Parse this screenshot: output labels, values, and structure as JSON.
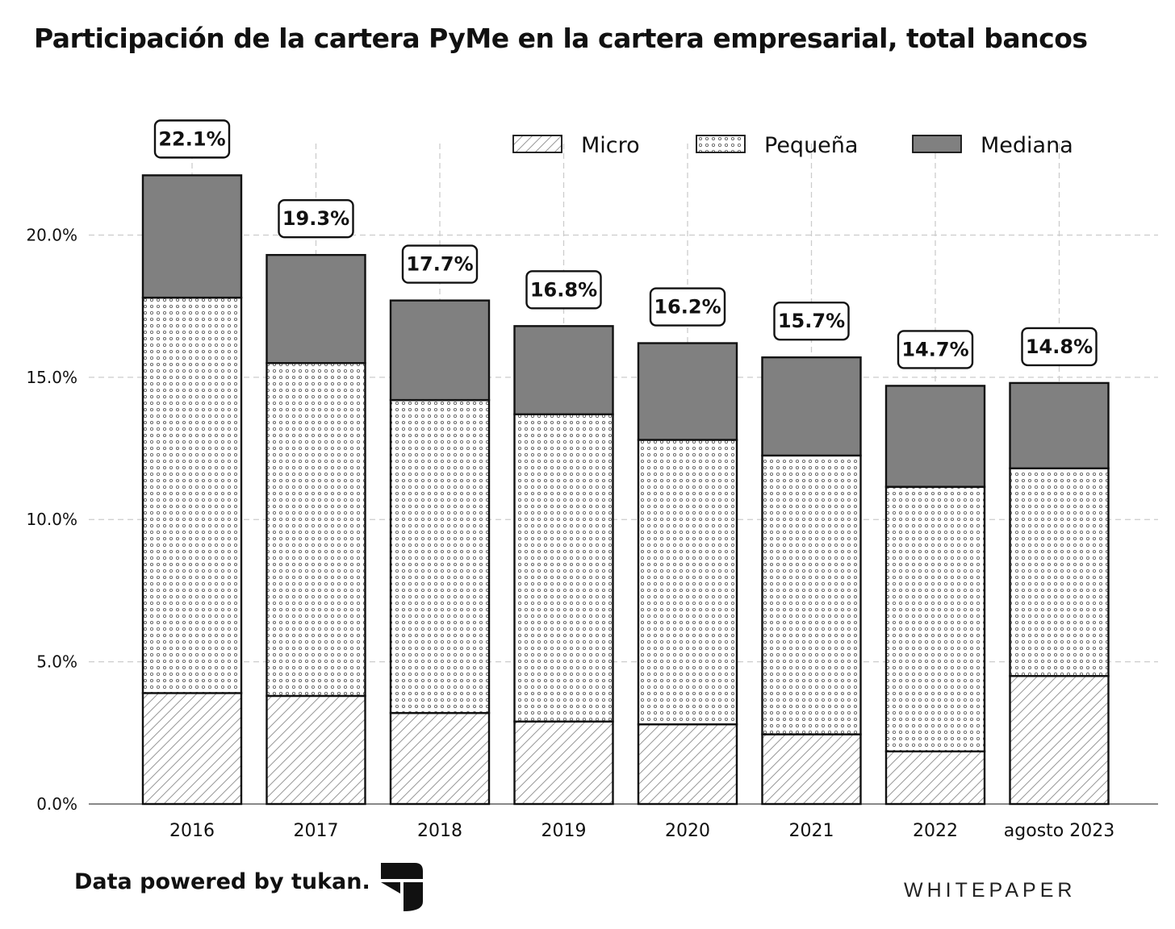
{
  "chart_data": {
    "type": "bar",
    "stacked": true,
    "title": "Participación de la cartera PyMe en la cartera empresarial, total bancos",
    "categories": [
      "2016",
      "2017",
      "2018",
      "2019",
      "2020",
      "2021",
      "2022",
      "agosto 2023"
    ],
    "series": [
      {
        "name": "Micro",
        "pattern": "diagonal-hatch",
        "values": [
          3.9,
          3.8,
          3.2,
          2.9,
          2.8,
          2.45,
          1.85,
          4.5
        ]
      },
      {
        "name": "Pequeña",
        "pattern": "dots",
        "values": [
          13.9,
          11.7,
          11.0,
          10.8,
          10.0,
          9.8,
          9.3,
          7.3
        ]
      },
      {
        "name": "Mediana",
        "pattern": "solid",
        "color": "#808080",
        "values": [
          4.3,
          3.8,
          3.5,
          3.1,
          3.4,
          3.45,
          3.55,
          3.0
        ]
      }
    ],
    "totals": [
      "22.1%",
      "19.3%",
      "17.7%",
      "16.8%",
      "16.2%",
      "15.7%",
      "14.7%",
      "14.8%"
    ],
    "y_ticks": [
      "0.0%",
      "5.0%",
      "10.0%",
      "15.0%",
      "20.0%"
    ],
    "y_tick_values": [
      0,
      5,
      10,
      15,
      20
    ],
    "ylim": [
      0,
      23.5
    ],
    "xlabel": "",
    "ylabel": "",
    "grid": true,
    "legend_position": "top-right"
  },
  "footer": {
    "credit": "Data powered by tukan.",
    "brand": "WHITEPAPER"
  },
  "colors": {
    "mediana_fill": "#808080",
    "grid": "#cccccc",
    "axis": "#888888",
    "outline": "#111111"
  }
}
